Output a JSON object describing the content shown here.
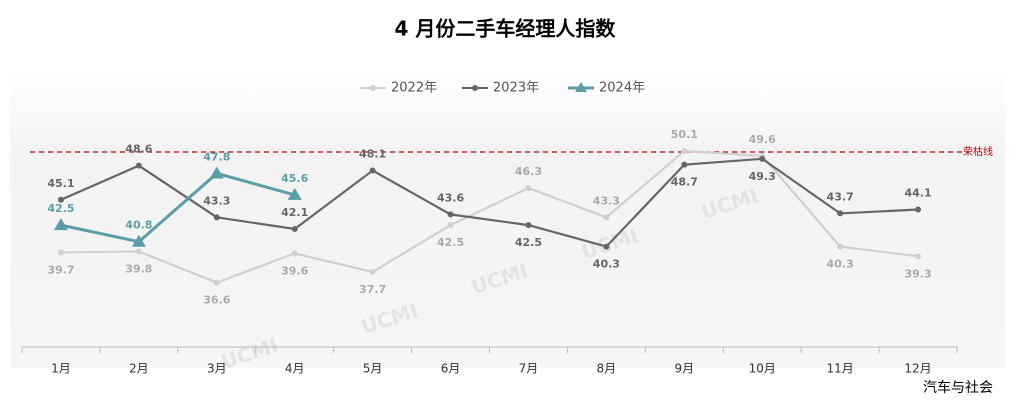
{
  "chart_data": {
    "type": "line",
    "title": "4 月份二手车经理人指数",
    "categories": [
      "1月",
      "2月",
      "3月",
      "4月",
      "5月",
      "6月",
      "7月",
      "8月",
      "9月",
      "10月",
      "11月",
      "12月"
    ],
    "series": [
      {
        "name": "2022年",
        "color": "#d0d0d0",
        "marker": "circle",
        "values": [
          39.7,
          39.8,
          36.6,
          39.6,
          37.7,
          42.5,
          46.3,
          43.3,
          50.1,
          49.6,
          40.3,
          39.3
        ]
      },
      {
        "name": "2023年",
        "color": "#666666",
        "marker": "circle",
        "values": [
          45.1,
          48.6,
          43.3,
          42.1,
          48.1,
          43.6,
          42.5,
          40.3,
          48.7,
          49.3,
          43.7,
          44.1
        ]
      },
      {
        "name": "2024年",
        "color": "#5b9ea8",
        "marker": "triangle",
        "values": [
          42.5,
          40.8,
          47.8,
          45.6,
          null,
          null,
          null,
          null,
          null,
          null,
          null,
          null
        ]
      }
    ],
    "reference_line": {
      "value": 50,
      "label": "荣枯线",
      "color": "#c00000"
    },
    "ylim": [
      30,
      60
    ],
    "watermark": "UCMI",
    "source": "汽车与社会"
  }
}
